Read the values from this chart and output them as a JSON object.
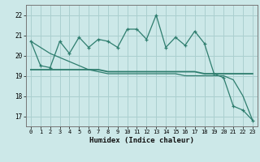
{
  "xlabel": "Humidex (Indice chaleur)",
  "x": [
    0,
    1,
    2,
    3,
    4,
    5,
    6,
    7,
    8,
    9,
    10,
    11,
    12,
    13,
    14,
    15,
    16,
    17,
    18,
    19,
    20,
    21,
    22,
    23
  ],
  "line1": [
    20.7,
    19.5,
    19.4,
    20.7,
    20.1,
    20.9,
    20.4,
    20.8,
    20.7,
    20.4,
    21.3,
    21.3,
    20.8,
    22.0,
    20.4,
    20.9,
    20.5,
    21.2,
    20.6,
    19.1,
    18.9,
    17.5,
    17.3,
    16.8
  ],
  "line2": [
    19.3,
    19.3,
    19.3,
    19.3,
    19.3,
    19.3,
    19.3,
    19.3,
    19.2,
    19.2,
    19.2,
    19.2,
    19.2,
    19.2,
    19.2,
    19.2,
    19.2,
    19.2,
    19.1,
    19.1,
    19.1,
    19.1,
    19.1,
    19.1
  ],
  "line3": [
    20.7,
    20.4,
    20.1,
    19.9,
    19.7,
    19.5,
    19.3,
    19.2,
    19.1,
    19.1,
    19.1,
    19.1,
    19.1,
    19.1,
    19.1,
    19.1,
    19.0,
    19.0,
    19.0,
    19.0,
    19.0,
    18.8,
    18.0,
    16.8
  ],
  "ylim": [
    16.5,
    22.5
  ],
  "yticks": [
    17,
    18,
    19,
    20,
    21,
    22
  ],
  "xticks": [
    0,
    1,
    2,
    3,
    4,
    5,
    6,
    7,
    8,
    9,
    10,
    11,
    12,
    13,
    14,
    15,
    16,
    17,
    18,
    19,
    20,
    21,
    22,
    23
  ],
  "line_color": "#2e7d6e",
  "bg_color": "#cce8e8",
  "grid_color": "#aacfcf"
}
